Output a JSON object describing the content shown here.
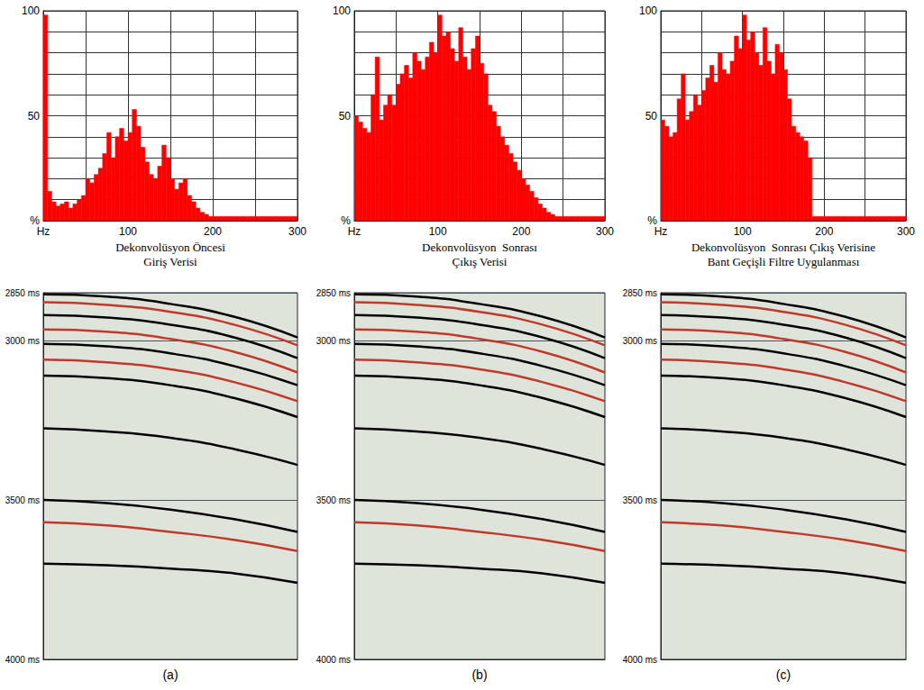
{
  "chart_data": [
    {
      "type": "histogram",
      "color": "#ff0000",
      "grid": true,
      "bins": [
        0,
        5,
        10,
        15,
        20,
        25,
        30,
        35,
        40,
        45,
        50,
        55,
        60,
        65,
        70,
        75,
        80,
        85,
        90,
        95,
        100,
        105,
        110,
        115,
        120,
        125,
        130,
        135,
        140,
        145,
        150,
        155,
        160,
        165,
        170,
        175,
        180,
        185,
        190,
        195,
        200,
        205,
        210,
        215,
        220,
        225,
        230,
        235,
        240,
        245,
        250,
        255,
        260,
        265,
        270,
        275,
        280,
        285,
        290,
        295,
        300
      ],
      "values": [
        98,
        14,
        9,
        7,
        8,
        9,
        6,
        8,
        10,
        12,
        20,
        18,
        22,
        25,
        32,
        42,
        30,
        40,
        44,
        38,
        42,
        53,
        45,
        35,
        28,
        22,
        20,
        26,
        36,
        30,
        20,
        15,
        18,
        20,
        12,
        9,
        6,
        4,
        3,
        2,
        2,
        2,
        2,
        2,
        2,
        2,
        2,
        2,
        2,
        2,
        2,
        2,
        2,
        2,
        2,
        2,
        2,
        2,
        2,
        2
      ],
      "xlim": [
        0,
        300
      ],
      "xticks": [
        {
          "value": 0,
          "label": "Hz"
        },
        100,
        200,
        300
      ],
      "ylim": [
        0,
        100
      ],
      "yticks": [
        {
          "value": 0,
          "label": "%"
        },
        50,
        100
      ]
    },
    {
      "type": "histogram",
      "color": "#ff0000",
      "grid": true,
      "bins": [
        0,
        5,
        10,
        15,
        20,
        25,
        30,
        35,
        40,
        45,
        50,
        55,
        60,
        65,
        70,
        75,
        80,
        85,
        90,
        95,
        100,
        105,
        110,
        115,
        120,
        125,
        130,
        135,
        140,
        145,
        150,
        155,
        160,
        165,
        170,
        175,
        180,
        185,
        190,
        195,
        200,
        205,
        210,
        215,
        220,
        225,
        230,
        235,
        240,
        245,
        250,
        255,
        260,
        265,
        270,
        275,
        280,
        285,
        290,
        295,
        300
      ],
      "values": [
        50,
        47,
        44,
        42,
        60,
        78,
        48,
        55,
        60,
        55,
        65,
        70,
        74,
        68,
        80,
        76,
        72,
        78,
        85,
        80,
        98,
        88,
        90,
        82,
        76,
        92,
        78,
        72,
        82,
        88,
        75,
        70,
        55,
        52,
        45,
        40,
        36,
        32,
        28,
        24,
        20,
        17,
        14,
        11,
        8,
        6,
        4,
        3,
        2,
        2,
        2,
        2,
        2,
        2,
        2,
        2,
        2,
        2,
        2,
        2
      ],
      "xlim": [
        0,
        300
      ],
      "xticks": [
        {
          "value": 0,
          "label": "Hz"
        },
        100,
        200,
        300
      ],
      "ylim": [
        0,
        100
      ],
      "yticks": [
        {
          "value": 0,
          "label": "%"
        },
        50,
        100
      ]
    },
    {
      "type": "histogram",
      "color": "#ff0000",
      "grid": true,
      "bins": [
        0,
        5,
        10,
        15,
        20,
        25,
        30,
        35,
        40,
        45,
        50,
        55,
        60,
        65,
        70,
        75,
        80,
        85,
        90,
        95,
        100,
        105,
        110,
        115,
        120,
        125,
        130,
        135,
        140,
        145,
        150,
        155,
        160,
        165,
        170,
        175,
        180,
        185,
        190,
        195,
        200,
        205,
        210,
        215,
        220,
        225,
        230,
        235,
        240,
        245,
        250,
        255,
        260,
        265,
        270,
        275,
        280,
        285,
        290,
        295,
        300
      ],
      "values": [
        48,
        45,
        40,
        42,
        58,
        70,
        48,
        52,
        60,
        55,
        62,
        68,
        74,
        66,
        80,
        72,
        70,
        76,
        88,
        82,
        98,
        86,
        90,
        80,
        74,
        92,
        76,
        70,
        84,
        80,
        72,
        58,
        45,
        42,
        40,
        38,
        30,
        2,
        2,
        2,
        2,
        2,
        2,
        2,
        2,
        2,
        2,
        2,
        2,
        2,
        2,
        2,
        2,
        2,
        2,
        2,
        2,
        2,
        2,
        2
      ],
      "xlim": [
        0,
        300
      ],
      "xticks": [
        {
          "value": 0,
          "label": "Hz"
        },
        100,
        200,
        300
      ],
      "ylim": [
        0,
        100
      ],
      "yticks": [
        {
          "value": 0,
          "label": "%"
        },
        50,
        100
      ]
    },
    {
      "type": "line",
      "title": "Dekonvolüsyon Öncesi\nGiriş Verisi",
      "annotation": "(a)",
      "color": "#dfe4da",
      "grid": true,
      "tick_labels": "y",
      "xlim": [
        0,
        100
      ],
      "ylim": [
        2850,
        4000
      ],
      "yticks": [
        {
          "value": 2850,
          "label": "2850 ms"
        },
        {
          "value": 3000,
          "label": "3000 ms"
        },
        {
          "value": 3500,
          "label": "3500 ms"
        },
        {
          "value": 4000,
          "label": "4000 ms"
        }
      ],
      "x": [
        0,
        25,
        50,
        75,
        100
      ],
      "series": [
        {
          "color": "#000000",
          "values": [
            2855,
            2862,
            2885,
            2925,
            2990
          ]
        },
        {
          "color": "#c0392b",
          "values": [
            2880,
            2888,
            2910,
            2950,
            3015
          ]
        },
        {
          "color": "#000000",
          "values": [
            2920,
            2928,
            2950,
            2990,
            3055
          ]
        },
        {
          "color": "#c0392b",
          "values": [
            2965,
            2972,
            2995,
            3035,
            3100
          ]
        },
        {
          "color": "#000000",
          "values": [
            3010,
            3018,
            3040,
            3080,
            3140
          ]
        },
        {
          "color": "#c0392b",
          "values": [
            3060,
            3068,
            3090,
            3130,
            3190
          ]
        },
        {
          "color": "#000000",
          "values": [
            3110,
            3118,
            3140,
            3180,
            3240
          ]
        },
        {
          "color": "#000000",
          "values": [
            3275,
            3285,
            3305,
            3340,
            3390
          ]
        },
        {
          "color": "#000000",
          "values": [
            3500,
            3510,
            3530,
            3560,
            3600
          ]
        },
        {
          "color": "#c0392b",
          "values": [
            3570,
            3580,
            3600,
            3625,
            3660
          ]
        },
        {
          "color": "#000000",
          "values": [
            3700,
            3705,
            3715,
            3730,
            3760
          ]
        }
      ]
    },
    {
      "type": "line",
      "title": "Dekonvolüsyon  Sonrası\nÇıkış Verisi",
      "annotation": "(b)",
      "color": "#dfe4da",
      "grid": true,
      "tick_labels": "y",
      "xlim": [
        0,
        100
      ],
      "ylim": [
        2850,
        4000
      ],
      "yticks": [
        {
          "value": 2850,
          "label": "2850 ms"
        },
        {
          "value": 3000,
          "label": "3000 ms"
        },
        {
          "value": 3500,
          "label": "3500 ms"
        },
        {
          "value": 4000,
          "label": "4000 ms"
        }
      ],
      "x": [
        0,
        25,
        50,
        75,
        100
      ],
      "series": [
        {
          "color": "#000000",
          "values": [
            2855,
            2862,
            2885,
            2925,
            2990
          ]
        },
        {
          "color": "#c0392b",
          "values": [
            2880,
            2888,
            2910,
            2950,
            3015
          ]
        },
        {
          "color": "#000000",
          "values": [
            2920,
            2928,
            2950,
            2990,
            3055
          ]
        },
        {
          "color": "#c0392b",
          "values": [
            2965,
            2972,
            2995,
            3035,
            3100
          ]
        },
        {
          "color": "#000000",
          "values": [
            3010,
            3018,
            3040,
            3080,
            3140
          ]
        },
        {
          "color": "#c0392b",
          "values": [
            3060,
            3068,
            3090,
            3130,
            3190
          ]
        },
        {
          "color": "#000000",
          "values": [
            3110,
            3118,
            3140,
            3180,
            3240
          ]
        },
        {
          "color": "#000000",
          "values": [
            3275,
            3285,
            3305,
            3340,
            3390
          ]
        },
        {
          "color": "#000000",
          "values": [
            3500,
            3510,
            3530,
            3560,
            3600
          ]
        },
        {
          "color": "#c0392b",
          "values": [
            3570,
            3580,
            3600,
            3625,
            3660
          ]
        },
        {
          "color": "#000000",
          "values": [
            3700,
            3705,
            3715,
            3730,
            3760
          ]
        }
      ]
    },
    {
      "type": "line",
      "title": "Dekonvolüsyon  Sonrası Çıkış Verisine\nBant Geçişli Filtre Uygulanması",
      "annotation": "(c)",
      "color": "#dfe4da",
      "grid": true,
      "tick_labels": "y",
      "xlim": [
        0,
        100
      ],
      "ylim": [
        2850,
        4000
      ],
      "yticks": [
        {
          "value": 2850,
          "label": "2850 ms"
        },
        {
          "value": 3000,
          "label": "3000 ms"
        },
        {
          "value": 3500,
          "label": "3500 ms"
        },
        {
          "value": 4000,
          "label": "4000 ms"
        }
      ],
      "x": [
        0,
        25,
        50,
        75,
        100
      ],
      "series": [
        {
          "color": "#000000",
          "values": [
            2855,
            2862,
            2885,
            2925,
            2990
          ]
        },
        {
          "color": "#c0392b",
          "values": [
            2880,
            2888,
            2910,
            2950,
            3015
          ]
        },
        {
          "color": "#000000",
          "values": [
            2920,
            2928,
            2950,
            2990,
            3055
          ]
        },
        {
          "color": "#c0392b",
          "values": [
            2965,
            2972,
            2995,
            3035,
            3100
          ]
        },
        {
          "color": "#000000",
          "values": [
            3010,
            3018,
            3040,
            3080,
            3140
          ]
        },
        {
          "color": "#c0392b",
          "values": [
            3060,
            3068,
            3090,
            3130,
            3190
          ]
        },
        {
          "color": "#000000",
          "values": [
            3110,
            3118,
            3140,
            3180,
            3240
          ]
        },
        {
          "color": "#000000",
          "values": [
            3275,
            3285,
            3305,
            3340,
            3390
          ]
        },
        {
          "color": "#000000",
          "values": [
            3500,
            3510,
            3530,
            3560,
            3600
          ]
        },
        {
          "color": "#c0392b",
          "values": [
            3570,
            3580,
            3600,
            3625,
            3660
          ]
        },
        {
          "color": "#000000",
          "values": [
            3700,
            3705,
            3715,
            3730,
            3760
          ]
        }
      ]
    }
  ]
}
